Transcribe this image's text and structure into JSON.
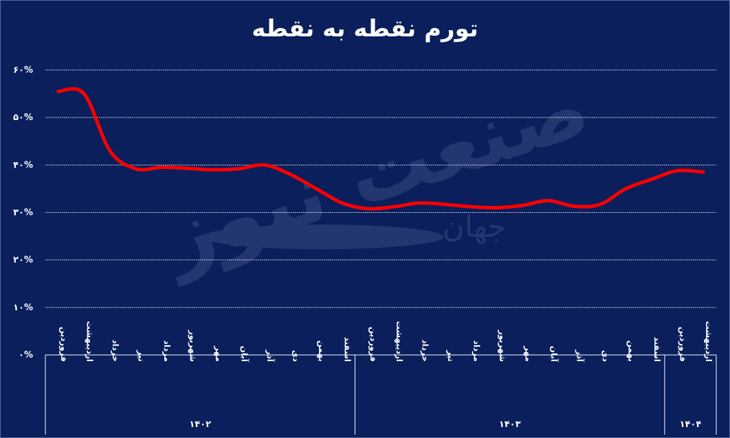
{
  "chart_data": {
    "type": "line",
    "title": "تورم نقطه به نقطه",
    "y_ticks": [
      "۰%",
      "۱۰%",
      "۲۰%",
      "۳۰%",
      "۴۰%",
      "۵۰%",
      "۶۰%"
    ],
    "ylim": [
      0,
      60
    ],
    "grid": true,
    "line_color": "#ff0000",
    "categories": [
      "فروردین",
      "اردیبهشت",
      "خرداد",
      "تیر",
      "مرداد",
      "شهریور",
      "مهر",
      "آبان",
      "آذر",
      "دی",
      "بهمن",
      "اسفند",
      "فروردین",
      "اردیبهشت",
      "خرداد",
      "تیر",
      "مرداد",
      "شهریور",
      "مهر",
      "آبان",
      "آذر",
      "دی",
      "بهمن",
      "اسفند",
      "فروردین",
      "اردیبهشت"
    ],
    "years": [
      {
        "label": "۱۴۰۲",
        "count": 12
      },
      {
        "label": "۱۴۰۳",
        "count": 12
      },
      {
        "label": "۱۴۰۴",
        "count": 2
      }
    ],
    "values": [
      55.5,
      55.0,
      43.0,
      39.2,
      39.5,
      39.3,
      39.0,
      39.2,
      40.0,
      38.0,
      35.0,
      32.0,
      30.8,
      31.2,
      32.0,
      31.7,
      31.2,
      31.0,
      31.5,
      32.5,
      31.3,
      31.7,
      35.0,
      37.0,
      38.8,
      38.5
    ]
  },
  "watermark": {
    "brand": "صنعت نیوز",
    "sub": "جهان"
  }
}
